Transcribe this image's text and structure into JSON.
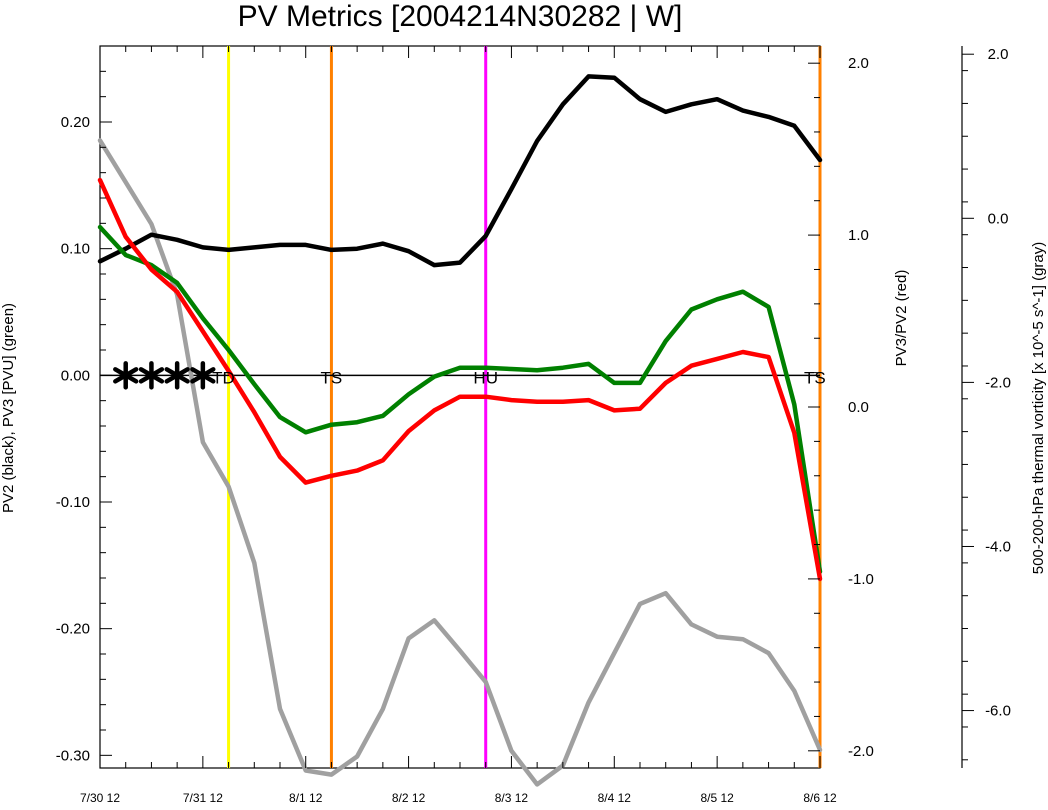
{
  "chart_data": {
    "type": "line",
    "title": "PV Metrics [2004214N30282 | W]",
    "x_ticks": [
      {
        "x": 0,
        "label": "7/30 12"
      },
      {
        "x": 1,
        "label": "7/31 12"
      },
      {
        "x": 2,
        "label": "8/1 12"
      },
      {
        "x": 3,
        "label": "8/2 12"
      },
      {
        "x": 4,
        "label": "8/3 12"
      },
      {
        "x": 5,
        "label": "8/4 12"
      },
      {
        "x": 6,
        "label": "8/5 12"
      },
      {
        "x": 7,
        "label": "8/6 12"
      }
    ],
    "xlim": [
      0,
      7
    ],
    "x": [
      0,
      0.25,
      0.5,
      0.75,
      1,
      1.25,
      1.5,
      1.75,
      2,
      2.25,
      2.5,
      2.75,
      3,
      3.25,
      3.5,
      3.75,
      4,
      4.25,
      4.5,
      4.75,
      5,
      5.25,
      5.5,
      5.75,
      6,
      6.25,
      6.5,
      6.75,
      7
    ],
    "axes": {
      "left": {
        "label": "PV2 (black), PV3 [PVU] (green)",
        "ylim": [
          -0.31,
          0.26
        ],
        "ticks": [
          0.2,
          0.1,
          0.0,
          -0.1,
          -0.2,
          -0.3
        ],
        "tick_labels": [
          "0.20",
          "0.10",
          "0.00",
          "-0.10",
          "-0.20",
          "-0.30"
        ]
      },
      "right": {
        "label": "PV3/PV2 (red)",
        "ylim": [
          -2.1,
          2.1
        ],
        "ticks": [
          2.0,
          1.0,
          0.0,
          -1.0,
          -2.0
        ],
        "tick_labels": [
          "2.0",
          "1.0",
          "0.0",
          "-1.0",
          "-2.0"
        ]
      },
      "far_right": {
        "label": "500-200-hPa thermal vorticity [x 10^-5 s^-1] (gray)",
        "ylim": [
          -6.7,
          2.1
        ],
        "ticks": [
          2.0,
          0.0,
          -2.0,
          -4.0,
          -6.0
        ],
        "tick_labels": [
          "2.0",
          "0.0",
          "-2.0",
          "-4.0",
          "-6.0"
        ]
      }
    },
    "series": [
      {
        "key": "pv2",
        "axis": "left",
        "color": "#000000",
        "values": [
          0.09,
          0.1,
          0.111,
          0.107,
          0.101,
          0.099,
          0.101,
          0.103,
          0.103,
          0.099,
          0.1,
          0.104,
          0.098,
          0.087,
          0.089,
          0.11,
          0.147,
          0.185,
          0.214,
          0.236,
          0.235,
          0.218,
          0.208,
          0.214,
          0.218,
          0.209,
          0.204,
          0.197,
          0.17
        ]
      },
      {
        "key": "pv3",
        "axis": "left",
        "color": "#008000",
        "values": [
          0.117,
          0.095,
          0.087,
          0.073,
          0.045,
          0.02,
          -0.007,
          -0.033,
          -0.045,
          -0.039,
          -0.037,
          -0.032,
          -0.015,
          -0.001,
          0.006,
          0.006,
          0.005,
          0.004,
          0.006,
          0.009,
          -0.006,
          -0.006,
          0.027,
          0.052,
          0.06,
          0.066,
          0.054,
          -0.023,
          -0.155
        ]
      },
      {
        "key": "pv3_pv2",
        "axis": "right",
        "color": "#ff0000",
        "values": [
          1.32,
          0.99,
          0.8,
          0.67,
          0.44,
          0.21,
          -0.03,
          -0.29,
          -0.44,
          -0.4,
          -0.37,
          -0.31,
          -0.14,
          -0.02,
          0.06,
          0.06,
          0.04,
          0.03,
          0.03,
          0.04,
          -0.02,
          -0.01,
          0.14,
          0.24,
          0.28,
          0.32,
          0.29,
          -0.15,
          -1.0
        ]
      },
      {
        "key": "thermal_vorticity",
        "axis": "far_right",
        "color": "#a0a0a0",
        "values": [
          0.95,
          0.44,
          -0.07,
          -0.93,
          -2.73,
          -3.27,
          -4.2,
          -5.98,
          -6.73,
          -6.78,
          -6.56,
          -5.98,
          -5.12,
          -4.9,
          -5.27,
          -5.65,
          -6.49,
          -6.9,
          -6.67,
          -5.9,
          -5.3,
          -4.7,
          -4.57,
          -4.95,
          -5.1,
          -5.13,
          -5.3,
          -5.76,
          -6.48
        ]
      }
    ],
    "vertical_lines": [
      {
        "x": 1.25,
        "color": "#ffff00"
      },
      {
        "x": 2.25,
        "color": "#ff8000"
      },
      {
        "x": 3.75,
        "color": "#ff00ff"
      },
      {
        "x": 7.0,
        "color": "#ff8000"
      }
    ],
    "stage_labels": [
      {
        "x": 1.2,
        "text": "TD"
      },
      {
        "x": 2.25,
        "text": "TS"
      },
      {
        "x": 3.75,
        "text": "HU"
      },
      {
        "x": 6.95,
        "text": "TS"
      }
    ],
    "markers": {
      "symbol": "*",
      "x": [
        0.25,
        0.5,
        0.75,
        1.0
      ],
      "y": 0.0
    },
    "zero_line": 0.0,
    "grid": false,
    "legend": "none"
  }
}
